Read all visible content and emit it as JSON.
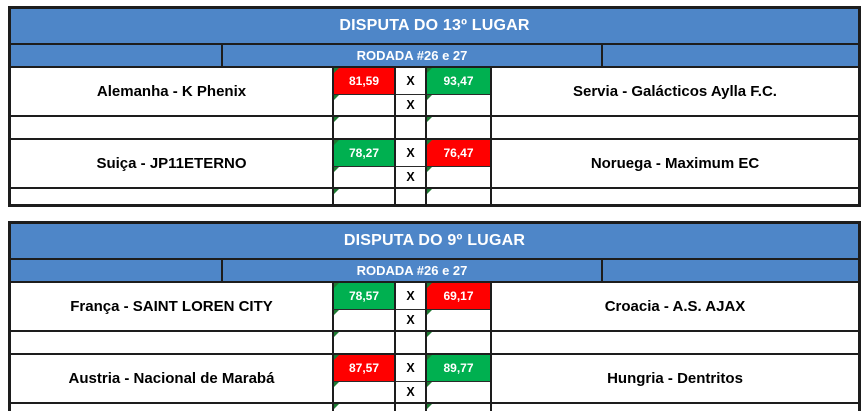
{
  "score_separator": "X",
  "colors": {
    "banner_blue": "#4E86C8",
    "win_green": "#00B050",
    "loss_red": "#FF0000",
    "border_dark": "#1D1D1D",
    "corner_flag_green": "#1E7B33",
    "score_text": "#FFFFFF"
  },
  "icons": {
    "cell_corner_flag": "excel-green-triangle"
  },
  "brackets": [
    {
      "title": "DISPUTA DO 13º LUGAR",
      "round_label": "RODADA #26 e 27",
      "matches": [
        {
          "home_team": "Alemanha - K Phenix",
          "home_score": "81,59",
          "home_result": "loss",
          "home_bg": "#FF0000",
          "away_score": "93,47",
          "away_result": "win",
          "away_bg": "#00B050",
          "away_team": "Servia - Galácticos Aylla F.C."
        },
        {
          "home_team": "Suiça - JP11ETERNO",
          "home_score": "78,27",
          "home_result": "win",
          "home_bg": "#00B050",
          "away_score": "76,47",
          "away_result": "loss",
          "away_bg": "#FF0000",
          "away_team": "Noruega - Maximum EC"
        }
      ]
    },
    {
      "title": "DISPUTA DO 9º LUGAR",
      "round_label": "RODADA #26 e 27",
      "matches": [
        {
          "home_team": "França - SAINT LOREN CITY",
          "home_score": "78,57",
          "home_result": "win",
          "home_bg": "#00B050",
          "away_score": "69,17",
          "away_result": "loss",
          "away_bg": "#FF0000",
          "away_team": "Croacia - A.S. AJAX"
        },
        {
          "home_team": "Austria - Nacional de Marabá",
          "home_score": "87,57",
          "home_result": "loss",
          "home_bg": "#FF0000",
          "away_score": "89,77",
          "away_result": "win",
          "away_bg": "#00B050",
          "away_team": "Hungria - Dentritos"
        }
      ]
    }
  ]
}
